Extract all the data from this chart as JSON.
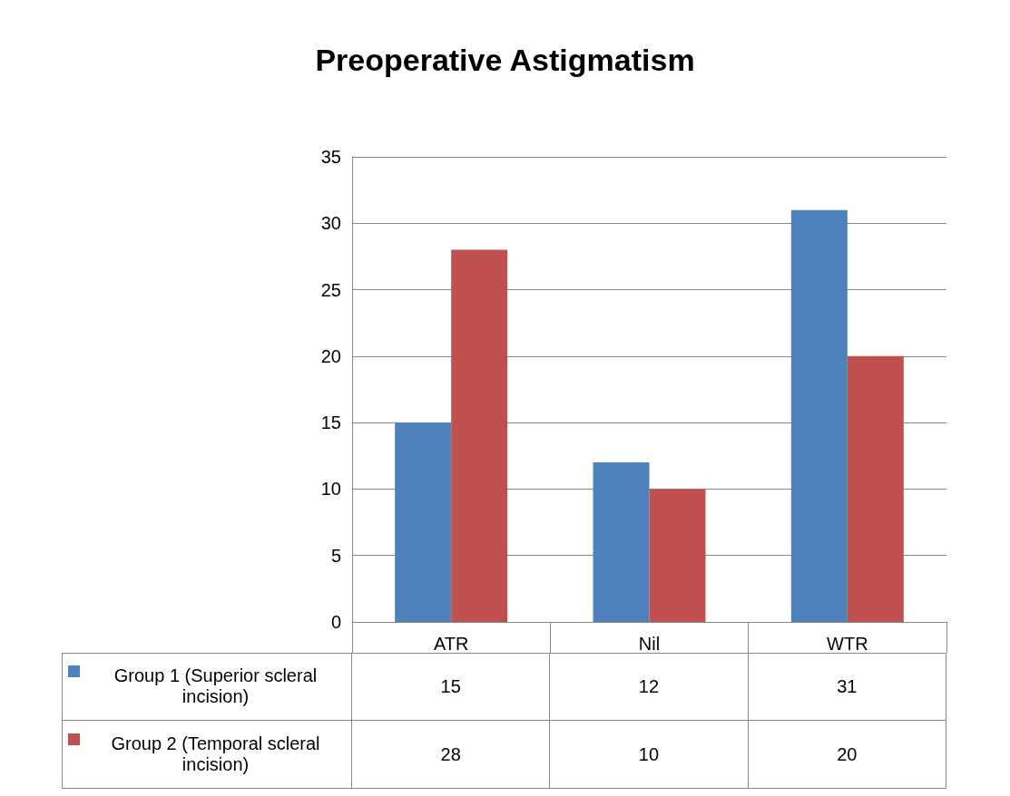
{
  "chart_data": {
    "type": "bar",
    "title": "Preoperative Astigmatism",
    "categories": [
      "ATR",
      "Nil",
      "WTR"
    ],
    "series": [
      {
        "name": "Group 1 (Superior scleral incision)",
        "color": "#4f81bd",
        "values": [
          15,
          12,
          31
        ]
      },
      {
        "name": "Group 2 (Temporal scleral incision)",
        "color": "#c0504d",
        "values": [
          28,
          10,
          20
        ]
      }
    ],
    "ylim": [
      0,
      35
    ],
    "yticks": [
      0,
      5,
      10,
      15,
      20,
      25,
      30,
      35
    ],
    "grid": "y",
    "legend": "bottom",
    "data_labels": true
  }
}
